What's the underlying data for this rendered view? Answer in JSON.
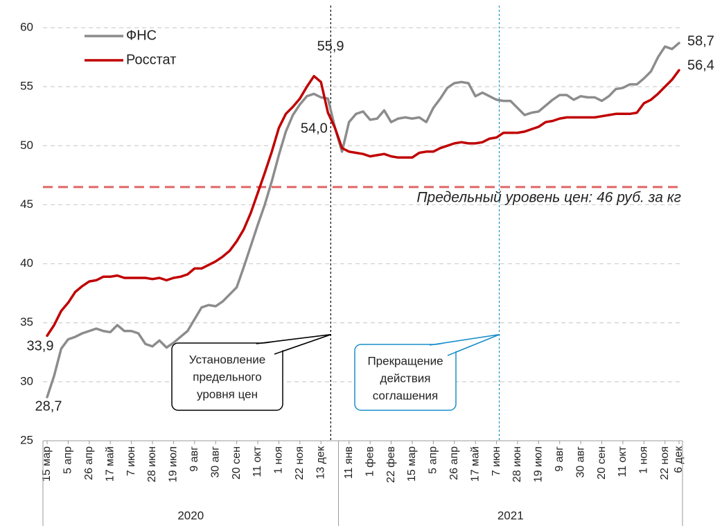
{
  "chart_data": {
    "type": "line",
    "categories": [
      "15 мар",
      null,
      null,
      "5 апр",
      null,
      null,
      "26 апр",
      null,
      null,
      "17 май",
      null,
      null,
      "7 июн",
      null,
      null,
      "28 июн",
      null,
      null,
      "19 июл",
      null,
      null,
      "9 авг",
      null,
      null,
      "30 авг",
      null,
      null,
      "20 сен",
      null,
      null,
      "11 окт",
      null,
      null,
      "1 ноя",
      null,
      null,
      "22 ноя",
      null,
      null,
      "13 дек",
      null,
      null,
      null,
      "11 янв",
      null,
      null,
      "1 фев",
      null,
      null,
      "22 фев",
      null,
      null,
      "15 мар",
      null,
      null,
      "5 апр",
      null,
      null,
      "26 апр",
      null,
      null,
      "17 май",
      null,
      null,
      "7 июн",
      null,
      null,
      "28 июн",
      null,
      null,
      "19 июл",
      null,
      null,
      "9 авг",
      null,
      null,
      "30 авг",
      null,
      null,
      "20 сен",
      null,
      null,
      "11 окт",
      null,
      null,
      "1 ноя",
      null,
      null,
      "22 ноя",
      null,
      "6 дек"
    ],
    "x_groups": [
      {
        "name": "2020",
        "count": 42
      },
      {
        "name": "2021",
        "count": 49
      }
    ],
    "series": [
      {
        "name": "ФНС",
        "color": "#8c8c8c",
        "values": [
          28.7,
          30.5,
          32.8,
          33.6,
          33.8,
          34.1,
          34.3,
          34.5,
          34.3,
          34.2,
          34.8,
          34.3,
          34.3,
          34.1,
          33.2,
          33.0,
          33.5,
          32.9,
          33.3,
          33.8,
          34.3,
          35.3,
          36.3,
          36.5,
          36.4,
          36.8,
          37.4,
          38.0,
          39.7,
          41.5,
          43.3,
          45.0,
          47.0,
          49.2,
          51.2,
          52.6,
          53.5,
          54.2,
          54.4,
          54.1,
          54.0,
          51.5,
          49.5,
          52.0,
          52.7,
          52.9,
          52.2,
          52.3,
          53.0,
          52.0,
          52.3,
          52.4,
          52.3,
          52.4,
          52.0,
          53.2,
          54.0,
          54.9,
          55.3,
          55.4,
          55.3,
          54.2,
          54.5,
          54.2,
          53.9,
          53.8,
          53.8,
          53.2,
          52.6,
          52.8,
          52.9,
          53.4,
          53.9,
          54.3,
          54.3,
          53.9,
          54.2,
          54.1,
          54.1,
          53.8,
          54.2,
          54.8,
          54.9,
          55.2,
          55.2,
          55.7,
          56.3,
          57.5,
          58.4,
          58.2,
          58.7
        ],
        "value_labels": [
          "28,7",
          null,
          null,
          null,
          null,
          null,
          null,
          null,
          null,
          null,
          null,
          null,
          null,
          null,
          null,
          null,
          null,
          null,
          null,
          null,
          null,
          null,
          null,
          null,
          null,
          null,
          null,
          null,
          null,
          null,
          null,
          null,
          null,
          null,
          null,
          null,
          null,
          null,
          null,
          null,
          "54,0",
          null,
          null,
          null,
          null,
          null,
          null,
          null,
          null,
          null,
          null,
          null,
          null,
          null,
          null,
          null,
          null,
          null,
          null,
          null,
          null,
          null,
          null,
          null,
          null,
          null,
          null,
          null,
          null,
          null,
          null,
          null,
          null,
          null,
          null,
          null,
          null,
          null,
          null,
          null,
          null,
          null,
          null,
          null,
          null,
          null,
          null,
          null,
          null,
          null,
          "58,7"
        ]
      },
      {
        "name": "Росстат",
        "color": "#c00000",
        "values": [
          33.9,
          34.8,
          36.0,
          36.7,
          37.6,
          38.1,
          38.5,
          38.6,
          38.9,
          38.9,
          39.0,
          38.8,
          38.8,
          38.8,
          38.8,
          38.7,
          38.8,
          38.6,
          38.8,
          38.9,
          39.1,
          39.6,
          39.6,
          39.9,
          40.2,
          40.6,
          41.1,
          41.9,
          42.9,
          44.3,
          46.0,
          47.7,
          49.5,
          51.5,
          52.7,
          53.3,
          54.0,
          55.0,
          55.9,
          55.4,
          52.8,
          51.5,
          49.8,
          49.5,
          49.4,
          49.3,
          49.1,
          49.2,
          49.3,
          49.1,
          49.0,
          49.0,
          49.0,
          49.4,
          49.5,
          49.5,
          49.8,
          50.0,
          50.2,
          50.3,
          50.2,
          50.2,
          50.3,
          50.6,
          50.7,
          51.1,
          51.1,
          51.1,
          51.2,
          51.4,
          51.6,
          52.0,
          52.1,
          52.3,
          52.4,
          52.4,
          52.4,
          52.4,
          52.4,
          52.5,
          52.6,
          52.7,
          52.7,
          52.7,
          52.8,
          53.6,
          53.9,
          54.4,
          55.0,
          55.6,
          56.4
        ],
        "value_labels": [
          "33,9",
          null,
          null,
          null,
          null,
          null,
          null,
          null,
          null,
          null,
          null,
          null,
          null,
          null,
          null,
          null,
          null,
          null,
          null,
          null,
          null,
          null,
          null,
          null,
          null,
          null,
          null,
          null,
          null,
          null,
          null,
          null,
          null,
          null,
          null,
          null,
          null,
          null,
          "55,9",
          null,
          null,
          null,
          null,
          null,
          null,
          null,
          null,
          null,
          null,
          null,
          null,
          null,
          null,
          null,
          null,
          null,
          null,
          null,
          null,
          null,
          null,
          null,
          null,
          null,
          null,
          null,
          null,
          null,
          null,
          null,
          null,
          null,
          null,
          null,
          null,
          null,
          null,
          null,
          null,
          null,
          null,
          null,
          null,
          null,
          null,
          null,
          null,
          null,
          null,
          null,
          "56,4"
        ]
      }
    ],
    "ylim": [
      25,
      60
    ],
    "yticks": [
      25,
      30,
      35,
      40,
      45,
      50,
      55,
      60
    ],
    "grid": true,
    "legend": "top-left",
    "hline": {
      "value": 46.5,
      "label": "Предельный уровень цен: 46 руб. за кг",
      "color": "#e06666"
    },
    "vlines": [
      {
        "index": 40,
        "color": "#000000",
        "lines": [
          "Установление",
          "предельного",
          "уровня цен"
        ]
      },
      {
        "index": 64,
        "color": "#1a8fc9",
        "lines": [
          "Прекращение",
          "действия",
          "соглашения"
        ]
      }
    ]
  }
}
